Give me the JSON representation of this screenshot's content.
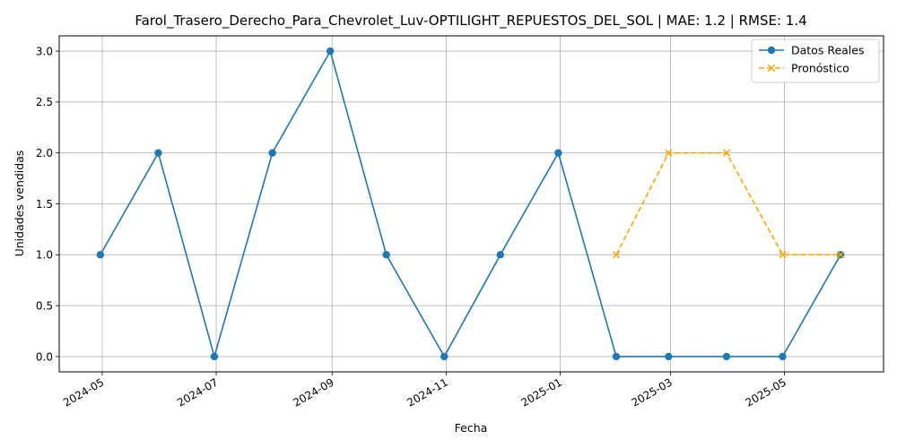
{
  "chart_data": {
    "type": "line",
    "title": "Farol_Trasero_Derecho_Para_Chevrolet_Luv-OPTILIGHT_REPUESTOS_DEL_SOL | MAE: 1.2 | RMSE: 1.4",
    "xlabel": "Fecha",
    "ylabel": "Unidades vendidas",
    "xlim": [
      "2024-04-08",
      "2025-06-23"
    ],
    "ylim": [
      -0.15,
      3.15
    ],
    "xticks": [
      {
        "date": "2024-05-01",
        "label": "2024-05"
      },
      {
        "date": "2024-07-01",
        "label": "2024-07"
      },
      {
        "date": "2024-09-01",
        "label": "2024-09"
      },
      {
        "date": "2024-11-01",
        "label": "2024-11"
      },
      {
        "date": "2025-01-01",
        "label": "2025-01"
      },
      {
        "date": "2025-03-01",
        "label": "2025-03"
      },
      {
        "date": "2025-05-01",
        "label": "2025-05"
      }
    ],
    "yticks": [
      0.0,
      0.5,
      1.0,
      1.5,
      2.0,
      2.5,
      3.0
    ],
    "ytick_labels": [
      "0.0",
      "0.5",
      "1.0",
      "1.5",
      "2.0",
      "2.5",
      "3.0"
    ],
    "grid": true,
    "legend_position": "top-right",
    "series": [
      {
        "name": "Datos Reales",
        "color": "#1f77b4",
        "line_style": "solid",
        "marker": "circle",
        "x": [
          "2024-04-30",
          "2024-05-31",
          "2024-06-30",
          "2024-07-31",
          "2024-08-31",
          "2024-09-30",
          "2024-10-31",
          "2024-11-30",
          "2024-12-31",
          "2025-01-31",
          "2025-02-28",
          "2025-03-31",
          "2025-04-30",
          "2025-05-31"
        ],
        "values": [
          1,
          2,
          0,
          2,
          3,
          1,
          0,
          1,
          2,
          0,
          0,
          0,
          0,
          1
        ]
      },
      {
        "name": "Pronóstico",
        "color": "#ffa500",
        "line_style": "dashed",
        "marker": "x",
        "x": [
          "2025-01-31",
          "2025-02-28",
          "2025-03-31",
          "2025-04-30",
          "2025-05-31"
        ],
        "values": [
          1,
          2,
          2,
          1,
          1
        ]
      }
    ]
  }
}
